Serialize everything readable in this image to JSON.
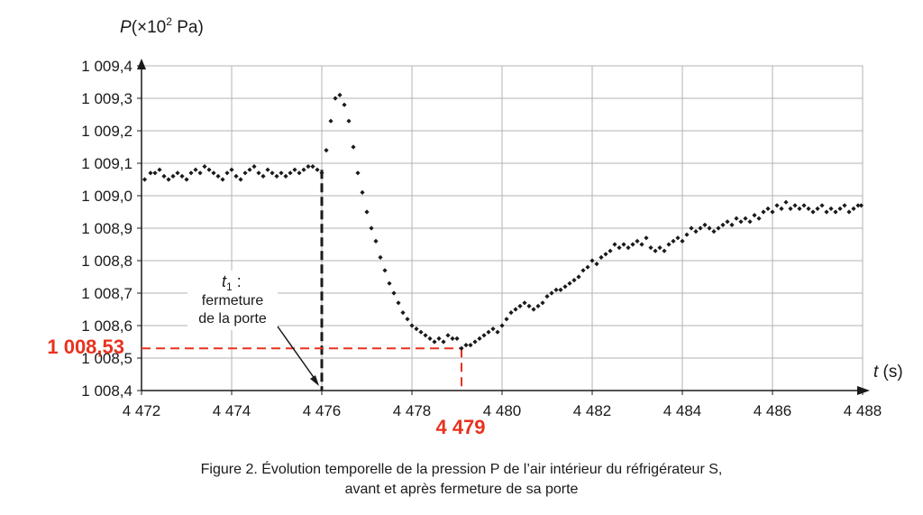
{
  "chart_data": {
    "type": "scatter",
    "title": "",
    "ylabel": {
      "var": "P",
      "prefix": "(×10",
      "exp": "2",
      "suffix": " Pa)"
    },
    "xlabel": {
      "var": "t",
      "unit": " (s)"
    },
    "xlim": [
      4472,
      4488
    ],
    "ylim": [
      1008.4,
      1009.4
    ],
    "xticks": [
      4472,
      4474,
      4476,
      4478,
      4480,
      4482,
      4484,
      4486,
      4488
    ],
    "xtick_labels": [
      "4 472",
      "4 474",
      "4 476",
      "4 478",
      "4 480",
      "4 482",
      "4 484",
      "4 486",
      "4 488"
    ],
    "yticks": [
      1008.4,
      1008.5,
      1008.6,
      1008.7,
      1008.8,
      1008.9,
      1009.0,
      1009.1,
      1009.2,
      1009.3,
      1009.4
    ],
    "ytick_labels": [
      "1 008,4",
      "1 008,5",
      "1 008,6",
      "1 008,7",
      "1 008,8",
      "1 008,9",
      "1 009,0",
      "1 009,1",
      "1 009,2",
      "1 009,3",
      "1 009,4"
    ],
    "grid": true,
    "series": [
      {
        "color": "#1a1a1a",
        "points": [
          [
            4472.07,
            1009.05
          ],
          [
            4472.2,
            1009.07
          ],
          [
            4472.3,
            1009.07
          ],
          [
            4472.4,
            1009.08
          ],
          [
            4472.5,
            1009.06
          ],
          [
            4472.6,
            1009.05
          ],
          [
            4472.7,
            1009.06
          ],
          [
            4472.8,
            1009.07
          ],
          [
            4472.9,
            1009.06
          ],
          [
            4473.0,
            1009.05
          ],
          [
            4473.1,
            1009.07
          ],
          [
            4473.2,
            1009.08
          ],
          [
            4473.3,
            1009.07
          ],
          [
            4473.4,
            1009.09
          ],
          [
            4473.5,
            1009.08
          ],
          [
            4473.6,
            1009.07
          ],
          [
            4473.7,
            1009.06
          ],
          [
            4473.8,
            1009.05
          ],
          [
            4473.9,
            1009.07
          ],
          [
            4474.0,
            1009.08
          ],
          [
            4474.1,
            1009.06
          ],
          [
            4474.2,
            1009.05
          ],
          [
            4474.3,
            1009.07
          ],
          [
            4474.4,
            1009.08
          ],
          [
            4474.5,
            1009.09
          ],
          [
            4474.6,
            1009.07
          ],
          [
            4474.7,
            1009.06
          ],
          [
            4474.8,
            1009.08
          ],
          [
            4474.9,
            1009.07
          ],
          [
            4475.0,
            1009.06
          ],
          [
            4475.1,
            1009.07
          ],
          [
            4475.2,
            1009.06
          ],
          [
            4475.3,
            1009.07
          ],
          [
            4475.4,
            1009.08
          ],
          [
            4475.5,
            1009.07
          ],
          [
            4475.6,
            1009.08
          ],
          [
            4475.7,
            1009.09
          ],
          [
            4475.8,
            1009.09
          ],
          [
            4475.9,
            1009.08
          ],
          [
            4476.0,
            1009.07
          ],
          [
            4476.1,
            1009.14
          ],
          [
            4476.2,
            1009.23
          ],
          [
            4476.3,
            1009.3
          ],
          [
            4476.4,
            1009.31
          ],
          [
            4476.5,
            1009.28
          ],
          [
            4476.6,
            1009.23
          ],
          [
            4476.7,
            1009.15
          ],
          [
            4476.8,
            1009.07
          ],
          [
            4476.9,
            1009.01
          ],
          [
            4477.0,
            1008.95
          ],
          [
            4477.1,
            1008.9
          ],
          [
            4477.2,
            1008.86
          ],
          [
            4477.3,
            1008.81
          ],
          [
            4477.4,
            1008.77
          ],
          [
            4477.5,
            1008.73
          ],
          [
            4477.6,
            1008.7
          ],
          [
            4477.7,
            1008.67
          ],
          [
            4477.8,
            1008.64
          ],
          [
            4477.9,
            1008.62
          ],
          [
            4478.0,
            1008.6
          ],
          [
            4478.1,
            1008.59
          ],
          [
            4478.2,
            1008.58
          ],
          [
            4478.3,
            1008.57
          ],
          [
            4478.4,
            1008.56
          ],
          [
            4478.5,
            1008.55
          ],
          [
            4478.6,
            1008.56
          ],
          [
            4478.7,
            1008.55
          ],
          [
            4478.8,
            1008.57
          ],
          [
            4478.9,
            1008.56
          ],
          [
            4479.0,
            1008.56
          ],
          [
            4479.1,
            1008.53
          ],
          [
            4479.2,
            1008.54
          ],
          [
            4479.3,
            1008.54
          ],
          [
            4479.4,
            1008.55
          ],
          [
            4479.5,
            1008.56
          ],
          [
            4479.6,
            1008.57
          ],
          [
            4479.7,
            1008.58
          ],
          [
            4479.8,
            1008.59
          ],
          [
            4479.9,
            1008.58
          ],
          [
            4480.0,
            1008.6
          ],
          [
            4480.1,
            1008.62
          ],
          [
            4480.2,
            1008.64
          ],
          [
            4480.3,
            1008.65
          ],
          [
            4480.4,
            1008.66
          ],
          [
            4480.5,
            1008.67
          ],
          [
            4480.6,
            1008.66
          ],
          [
            4480.7,
            1008.65
          ],
          [
            4480.8,
            1008.66
          ],
          [
            4480.9,
            1008.67
          ],
          [
            4481.0,
            1008.69
          ],
          [
            4481.1,
            1008.7
          ],
          [
            4481.2,
            1008.71
          ],
          [
            4481.3,
            1008.71
          ],
          [
            4481.4,
            1008.72
          ],
          [
            4481.5,
            1008.73
          ],
          [
            4481.6,
            1008.74
          ],
          [
            4481.7,
            1008.75
          ],
          [
            4481.8,
            1008.77
          ],
          [
            4481.9,
            1008.78
          ],
          [
            4482.0,
            1008.8
          ],
          [
            4482.1,
            1008.79
          ],
          [
            4482.2,
            1008.81
          ],
          [
            4482.3,
            1008.82
          ],
          [
            4482.4,
            1008.83
          ],
          [
            4482.5,
            1008.85
          ],
          [
            4482.6,
            1008.84
          ],
          [
            4482.7,
            1008.85
          ],
          [
            4482.8,
            1008.84
          ],
          [
            4482.9,
            1008.85
          ],
          [
            4483.0,
            1008.86
          ],
          [
            4483.1,
            1008.85
          ],
          [
            4483.2,
            1008.87
          ],
          [
            4483.3,
            1008.84
          ],
          [
            4483.4,
            1008.83
          ],
          [
            4483.5,
            1008.84
          ],
          [
            4483.6,
            1008.83
          ],
          [
            4483.7,
            1008.85
          ],
          [
            4483.8,
            1008.86
          ],
          [
            4483.9,
            1008.87
          ],
          [
            4484.0,
            1008.86
          ],
          [
            4484.1,
            1008.88
          ],
          [
            4484.2,
            1008.9
          ],
          [
            4484.3,
            1008.89
          ],
          [
            4484.4,
            1008.9
          ],
          [
            4484.5,
            1008.91
          ],
          [
            4484.6,
            1008.9
          ],
          [
            4484.7,
            1008.89
          ],
          [
            4484.8,
            1008.9
          ],
          [
            4484.9,
            1008.91
          ],
          [
            4485.0,
            1008.92
          ],
          [
            4485.1,
            1008.91
          ],
          [
            4485.2,
            1008.93
          ],
          [
            4485.3,
            1008.92
          ],
          [
            4485.4,
            1008.93
          ],
          [
            4485.5,
            1008.92
          ],
          [
            4485.6,
            1008.94
          ],
          [
            4485.7,
            1008.93
          ],
          [
            4485.8,
            1008.95
          ],
          [
            4485.9,
            1008.96
          ],
          [
            4486.0,
            1008.95
          ],
          [
            4486.1,
            1008.97
          ],
          [
            4486.2,
            1008.96
          ],
          [
            4486.3,
            1008.98
          ],
          [
            4486.4,
            1008.96
          ],
          [
            4486.5,
            1008.97
          ],
          [
            4486.6,
            1008.96
          ],
          [
            4486.7,
            1008.97
          ],
          [
            4486.8,
            1008.96
          ],
          [
            4486.9,
            1008.95
          ],
          [
            4487.0,
            1008.96
          ],
          [
            4487.1,
            1008.97
          ],
          [
            4487.2,
            1008.95
          ],
          [
            4487.3,
            1008.96
          ],
          [
            4487.4,
            1008.95
          ],
          [
            4487.5,
            1008.96
          ],
          [
            4487.6,
            1008.97
          ],
          [
            4487.7,
            1008.95
          ],
          [
            4487.8,
            1008.96
          ],
          [
            4487.9,
            1008.97
          ],
          [
            4487.97,
            1008.97
          ]
        ]
      }
    ],
    "markers": {
      "t1": {
        "x": 4476,
        "y_top": 1009.08,
        "color": "#1a1a1a"
      },
      "min": {
        "x": 4479.1,
        "y": 1008.53,
        "color": "#e8321f"
      }
    },
    "annotations": {
      "t1_label_var": "t",
      "t1_label_sub": "1",
      "t1_label_colon": " :",
      "t1_line1": "fermeture",
      "t1_line2": "de la porte",
      "min_y_label": "1 008,53",
      "min_x_label": "4 479"
    }
  },
  "caption": {
    "line1": "Figure 2. Évolution temporelle de la pression P de l’air intérieur du réfrigérateur S,",
    "line2": "avant et après fermeture de sa porte"
  }
}
